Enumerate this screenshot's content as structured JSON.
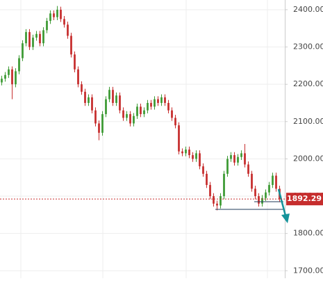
{
  "chart_data": {
    "type": "candlestick",
    "up_color": "#3c9a33",
    "down_color": "#c62d2d",
    "ylim": [
      1680,
      2426
    ],
    "yticks": [
      {
        "value": 1700,
        "label": "1700.00"
      },
      {
        "value": 1800,
        "label": "1800.00"
      },
      {
        "value": 1900,
        "label": "1900.00"
      },
      {
        "value": 2000,
        "label": "2000.00"
      },
      {
        "value": 2100,
        "label": "2100.00"
      },
      {
        "value": 2200,
        "label": "2200.00"
      },
      {
        "value": 2300,
        "label": "2300.00"
      },
      {
        "value": 2400,
        "label": "2400.00"
      }
    ],
    "grid": true,
    "last_price": 1892.29,
    "last_price_color": "#c62d2d",
    "open": [
      2205,
      2215,
      2225,
      2240,
      2200,
      2235,
      2270,
      2310,
      2340,
      2300,
      2325,
      2335,
      2310,
      2345,
      2370,
      2390,
      2380,
      2400,
      2375,
      2360,
      2330,
      2280,
      2240,
      2200,
      2180,
      2150,
      2165,
      2130,
      2095,
      2070,
      2120,
      2160,
      2185,
      2150,
      2170,
      2130,
      2110,
      2120,
      2095,
      2115,
      2140,
      2120,
      2130,
      2150,
      2140,
      2160,
      2150,
      2165,
      2150,
      2130,
      2110,
      2090,
      2020,
      2015,
      2025,
      2010,
      2000,
      2015,
      1980,
      1960,
      1930,
      1900,
      1880,
      1875,
      1900,
      1960,
      2000,
      2010,
      1990,
      2005,
      2015,
      1985,
      1960,
      1920,
      1900,
      1880,
      1895,
      1910,
      1930,
      1955,
      1920
    ],
    "high": [
      2223,
      2233,
      2248,
      2248,
      2243,
      2278,
      2318,
      2348,
      2348,
      2333,
      2343,
      2343,
      2353,
      2378,
      2398,
      2398,
      2410,
      2408,
      2383,
      2368,
      2338,
      2288,
      2248,
      2208,
      2188,
      2173,
      2173,
      2138,
      2103,
      2128,
      2168,
      2193,
      2193,
      2178,
      2178,
      2138,
      2128,
      2128,
      2123,
      2148,
      2148,
      2138,
      2158,
      2158,
      2168,
      2168,
      2173,
      2173,
      2158,
      2138,
      2118,
      2098,
      2028,
      2033,
      2033,
      2018,
      2023,
      2023,
      1988,
      1968,
      1938,
      1908,
      1888,
      1908,
      1968,
      2008,
      2018,
      2018,
      2013,
      2023,
      2040,
      1993,
      1968,
      1928,
      1908,
      1903,
      1918,
      1938,
      1963,
      1963,
      1928
    ],
    "low": [
      2197,
      2207,
      2217,
      2160,
      2192,
      2227,
      2262,
      2302,
      2292,
      2292,
      2317,
      2302,
      2302,
      2337,
      2362,
      2372,
      2372,
      2367,
      2352,
      2322,
      2272,
      2232,
      2192,
      2172,
      2142,
      2142,
      2122,
      2087,
      2050,
      2062,
      2112,
      2152,
      2142,
      2142,
      2122,
      2102,
      2102,
      2087,
      2087,
      2107,
      2112,
      2112,
      2122,
      2132,
      2132,
      2142,
      2142,
      2142,
      2122,
      2102,
      2082,
      2012,
      2007,
      2007,
      2002,
      1992,
      1992,
      1972,
      1952,
      1922,
      1892,
      1872,
      1862,
      1867,
      1892,
      1952,
      1992,
      1982,
      1982,
      1997,
      1977,
      1952,
      1912,
      1892,
      1872,
      1872,
      1887,
      1902,
      1922,
      1912,
      1884
    ],
    "close": [
      2215,
      2225,
      2240,
      2200,
      2235,
      2270,
      2310,
      2340,
      2300,
      2325,
      2335,
      2310,
      2345,
      2370,
      2390,
      2380,
      2400,
      2375,
      2360,
      2330,
      2280,
      2240,
      2200,
      2180,
      2150,
      2165,
      2130,
      2095,
      2070,
      2120,
      2160,
      2185,
      2150,
      2170,
      2130,
      2110,
      2120,
      2095,
      2115,
      2140,
      2120,
      2130,
      2150,
      2140,
      2160,
      2150,
      2165,
      2150,
      2130,
      2110,
      2090,
      2020,
      2015,
      2025,
      2010,
      2000,
      2015,
      1980,
      1960,
      1930,
      1900,
      1880,
      1875,
      1900,
      1960,
      2000,
      2010,
      1990,
      2005,
      2015,
      1985,
      1960,
      1920,
      1900,
      1880,
      1895,
      1910,
      1930,
      1955,
      1920,
      1892.29
    ]
  }
}
